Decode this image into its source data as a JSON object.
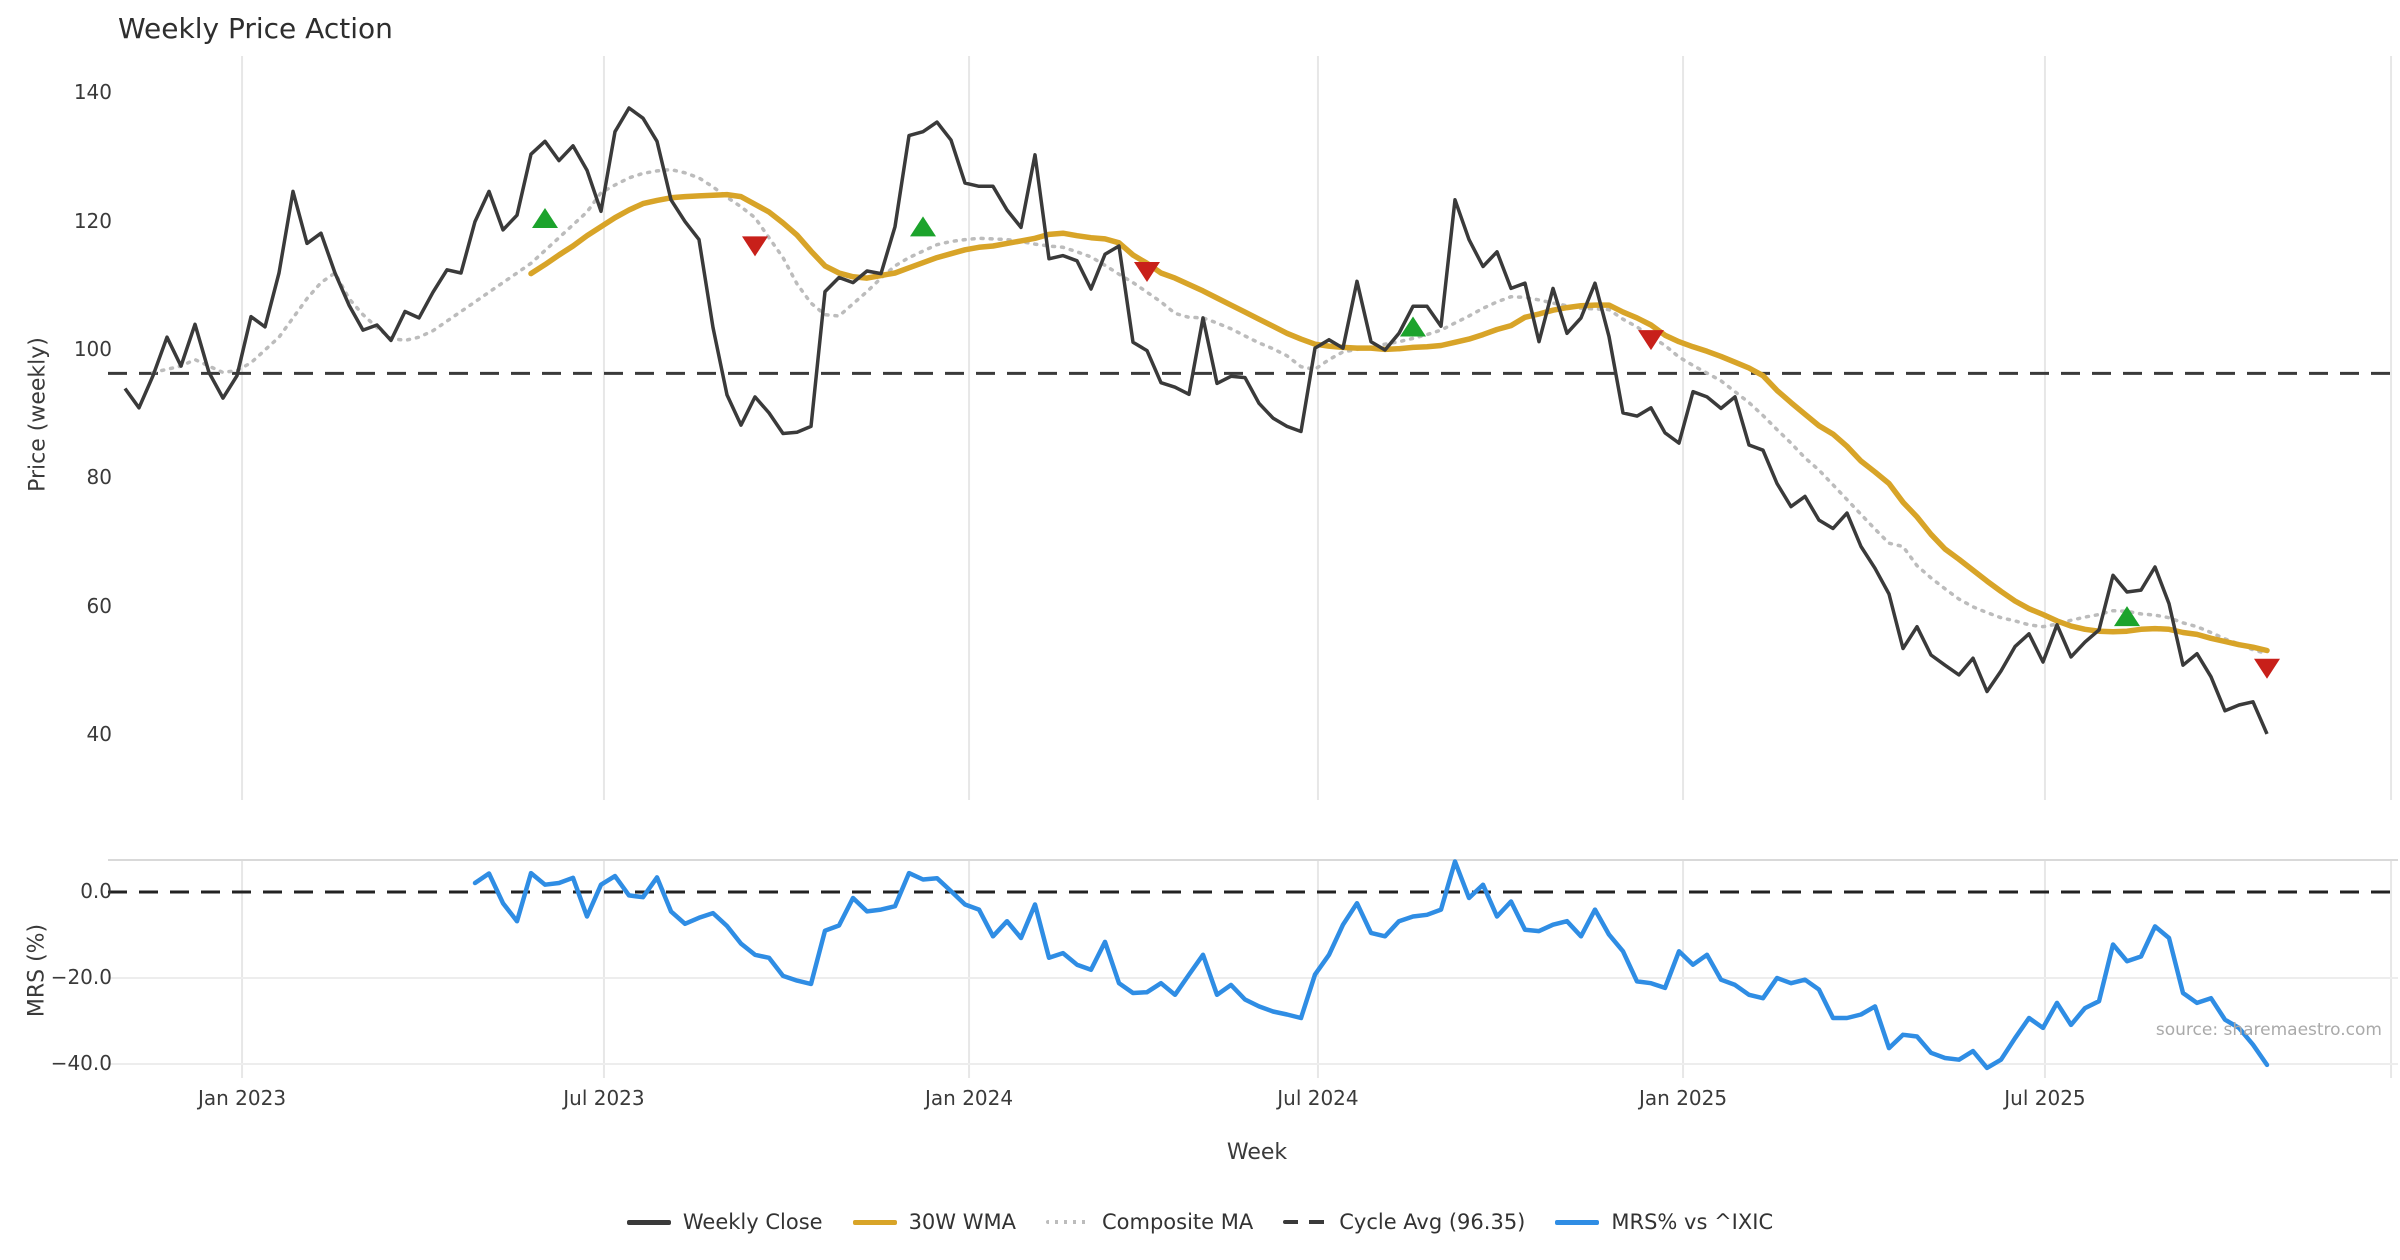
{
  "title": "Weekly Price Action",
  "watermark": "source: sharemaestro.com",
  "colors": {
    "close": "#3a3a3a",
    "wma": "#d8a428",
    "composite": "#bcbcbc",
    "cycle": "#3a3a3a",
    "mrs": "#2f8de4",
    "buy": "#1ca32c",
    "sell": "#c8201a",
    "grid": "#e7e7e7",
    "panel_border": "#d9d9d9"
  },
  "legend": [
    {
      "label": "Weekly Close",
      "swatch": "sw-close"
    },
    {
      "label": "30W WMA",
      "swatch": "sw-wma"
    },
    {
      "label": "Composite MA",
      "swatch": "sw-comp"
    },
    {
      "label": "Cycle Avg (96.35)",
      "swatch": "sw-cyc"
    },
    {
      "label": "MRS% vs ^IXIC",
      "swatch": "sw-mrs"
    }
  ],
  "chart_data": {
    "type": "line",
    "x_unit": "week",
    "ticks": [
      {
        "week": 8.36,
        "label": "Jan 2023"
      },
      {
        "week": 34.21,
        "label": "Jul 2023"
      },
      {
        "week": 60.29,
        "label": "Jan 2024"
      },
      {
        "week": 85.21,
        "label": "Jul 2024"
      },
      {
        "week": 111.29,
        "label": "Jan 2025"
      },
      {
        "week": 137.14,
        "label": "Jul 2025"
      }
    ],
    "extra_gridline_weeks": [
      161.86
    ],
    "price_panel": {
      "ylabel": "Price (weekly)",
      "yticks": [
        140,
        120,
        100,
        80,
        60,
        40
      ],
      "ylim_note": "y=350+(100-v)*6.42 px",
      "cycle_avg": 96.35,
      "series": [
        {
          "name": "Weekly Close",
          "start_week": 0,
          "values": [
            94,
            91,
            96,
            102,
            97.5,
            104,
            96.5,
            92.5,
            96,
            105.2,
            103.6,
            112,
            124.7,
            116.6,
            118.2,
            112,
            107,
            103.1,
            103.9,
            101.5,
            106,
            105,
            109,
            112.5,
            112,
            120,
            124.7,
            118.7,
            121,
            130.5,
            132.5,
            129.5,
            131.8,
            128,
            121.6,
            134,
            137.7,
            136.1,
            132.5,
            123.4,
            120,
            117.2,
            103.5,
            93,
            88.3,
            92.7,
            90.2,
            87,
            87.2,
            88.1,
            109.1,
            111.3,
            110.5,
            112.3,
            111.9,
            119.2,
            133.4,
            134,
            135.5,
            132.7,
            126,
            125.5,
            125.5,
            121.8,
            119.1,
            130.4,
            114.2,
            114.7,
            113.9,
            109.5,
            114.9,
            116.2,
            101.2,
            99.9,
            94.9,
            94.2,
            93.1,
            105,
            94.8,
            95.9,
            95.7,
            91.7,
            89.4,
            88.1,
            87.3,
            100.3,
            101.6,
            100.3,
            110.7,
            101.3,
            100,
            102.6,
            106.8,
            106.8,
            103.7,
            123.4,
            117.2,
            113,
            115.3,
            109.6,
            110.4,
            101.3,
            109.6,
            102.6,
            105,
            110.4,
            102.1,
            90.2,
            89.7,
            91,
            87.1,
            85.5,
            93.5,
            92.7,
            90.9,
            92.7,
            85.2,
            84.4,
            79.2,
            75.6,
            77.2,
            73.5,
            72.2,
            74.6,
            69.4,
            66,
            62,
            53.5,
            56.9,
            52.5,
            50.9,
            49.4,
            52,
            46.8,
            50,
            53.8,
            55.8,
            51.4,
            57.2,
            52.2,
            54.5,
            56.4,
            64.9,
            62.3,
            62.6,
            66.2,
            60.5,
            50.9,
            52.7,
            49.1,
            43.8,
            44.7,
            45.2,
            40.2
          ]
        },
        {
          "name": "30W WMA",
          "start_week": 29,
          "values": [
            111.9,
            113.3,
            114.8,
            116.2,
            117.8,
            119.2,
            120.6,
            121.8,
            122.8,
            123.3,
            123.7,
            123.9,
            124,
            124.1,
            124.2,
            123.9,
            122.7,
            121.5,
            119.8,
            117.9,
            115.4,
            113.1,
            112,
            111.4,
            111.2,
            111.6,
            112,
            112.8,
            113.6,
            114.4,
            115,
            115.6,
            116,
            116.2,
            116.6,
            117,
            117.4,
            118,
            118.2,
            117.8,
            117.5,
            117.3,
            116.7,
            114.8,
            113.5,
            112,
            111.2,
            110.2,
            109.2,
            108.1,
            107,
            105.9,
            104.8,
            103.7,
            102.6,
            101.7,
            100.9,
            100.6,
            100.4,
            100.3,
            100.3,
            100.1,
            100.2,
            100.4,
            100.5,
            100.7,
            101.2,
            101.7,
            102.4,
            103.2,
            103.8,
            105.1,
            105.6,
            106.2,
            106.6,
            106.9,
            107,
            107,
            105.9,
            105,
            103.9,
            102.3,
            101.3,
            100.5,
            99.8,
            99,
            98.1,
            97.2,
            96,
            93.7,
            91.8,
            90,
            88.2,
            86.9,
            85,
            82.7,
            81,
            79.2,
            76.3,
            74,
            71.3,
            69,
            67.4,
            65.7,
            64,
            62.4,
            60.9,
            59.7,
            58.8,
            57.8,
            57,
            56.5,
            56.2,
            56.1,
            56.2,
            56.5,
            56.6,
            56.5,
            56,
            55.7,
            55.1,
            54.6,
            54.1,
            53.7,
            53.2
          ]
        },
        {
          "name": "Composite MA",
          "start_week": 2,
          "values": [
            96.5,
            97,
            97.5,
            98.5,
            97.5,
            96.5,
            96.8,
            98,
            100,
            102,
            105,
            108,
            110.5,
            112,
            108,
            105.5,
            103.5,
            101.8,
            101.5,
            102,
            103,
            104.5,
            106,
            107.5,
            109,
            110.5,
            112,
            113.5,
            115.5,
            117.5,
            119.5,
            121.5,
            124.5,
            125.7,
            126.8,
            127.5,
            127.9,
            128.1,
            127.6,
            126.8,
            125.4,
            123.8,
            122.3,
            120.6,
            117.5,
            114.4,
            110.3,
            107.3,
            105.5,
            105.3,
            107.2,
            109.1,
            111.2,
            113.1,
            114.4,
            115.4,
            116.4,
            116.9,
            117.2,
            117.4,
            117.3,
            117.2,
            116.9,
            116.5,
            116.2,
            116,
            115.3,
            114.5,
            113.2,
            111.8,
            110.5,
            109,
            107.5,
            105.7,
            105.1,
            105,
            104.2,
            103.3,
            102.2,
            101.1,
            100.2,
            99.1,
            97.4,
            97,
            98.5,
            99.7,
            100.1,
            100.5,
            100.9,
            101.3,
            101.8,
            102.4,
            103.1,
            104.2,
            105.3,
            106.5,
            107.5,
            108.3,
            108.2,
            107.8,
            107.3,
            106.9,
            106.5,
            106.4,
            106.3,
            104.8,
            103.6,
            102.1,
            100.7,
            98.9,
            97.6,
            96.4,
            95.2,
            93.5,
            91.8,
            89.8,
            87.6,
            85.5,
            83.2,
            81.3,
            79,
            76.7,
            74.4,
            72.1,
            69.9,
            69.4,
            66.4,
            64.5,
            62.8,
            61.2,
            60,
            59.1,
            58.3,
            57.8,
            57.2,
            56.9,
            57.3,
            57.9,
            58.4,
            58.8,
            59.4,
            59.3,
            58.9,
            58.7,
            58.3,
            57.5,
            56.9,
            56,
            55,
            54.2,
            53.3,
            52.7
          ]
        }
      ],
      "signals": {
        "buy": [
          [
            30,
            120.4
          ],
          [
            57,
            119.1
          ],
          [
            92,
            103.5
          ],
          [
            143,
            58.4
          ]
        ],
        "sell": [
          [
            45,
            116.3
          ],
          [
            73,
            112.3
          ],
          [
            109,
            101.7
          ],
          [
            153,
            50.5
          ]
        ]
      }
    },
    "mrs_panel": {
      "ylabel": "MRS (%)",
      "xlabel": "Week",
      "yticks": [
        {
          "label": "0.0",
          "value": 0
        },
        {
          "label": "−20.0",
          "value": -20
        },
        {
          "label": "−40.0",
          "value": -40
        }
      ],
      "zero_line": 0,
      "series": [
        {
          "name": "MRS% vs ^IXIC",
          "start_week": 25,
          "values": [
            2.1,
            4.3,
            -2.6,
            -6.8,
            4.4,
            1.7,
            2.1,
            3.3,
            -5.7,
            1.7,
            3.7,
            -0.8,
            -1.2,
            3.4,
            -4.5,
            -7.4,
            -6,
            -4.9,
            -7.9,
            -12,
            -14.6,
            -15.3,
            -19.5,
            -20.6,
            -21.4,
            -9,
            -7.8,
            -1.4,
            -4.5,
            -4.1,
            -3.3,
            4.4,
            2.9,
            3.2,
            0.2,
            -2.9,
            -4.1,
            -10.3,
            -6.8,
            -10.7,
            -2.9,
            -15.3,
            -14.2,
            -16.9,
            -18.1,
            -11.6,
            -21.2,
            -23.5,
            -23.3,
            -21.2,
            -23.9,
            -19.2,
            -14.6,
            -23.9,
            -21.6,
            -25,
            -26.6,
            -27.8,
            -28.5,
            -29.3,
            -19.2,
            -14.6,
            -7.6,
            -2.6,
            -9.5,
            -10.3,
            -6.8,
            -5.7,
            -5.3,
            -4.1,
            7.1,
            -1.4,
            1.7,
            -5.7,
            -2.2,
            -8.8,
            -9.1,
            -7.6,
            -6.8,
            -10.3,
            -4.1,
            -9.9,
            -13.8,
            -20.8,
            -21.2,
            -22.3,
            -13.8,
            -16.9,
            -14.6,
            -20.4,
            -21.6,
            -23.9,
            -24.7,
            -20,
            -21.2,
            -20.4,
            -22.7,
            -29.3,
            -29.3,
            -28.5,
            -26.6,
            -36.3,
            -33.2,
            -33.6,
            -37.4,
            -38.6,
            -39,
            -37,
            -40.9,
            -39,
            -34,
            -29.3,
            -31.6,
            -25.8,
            -30.9,
            -27,
            -25.4,
            -12.2,
            -16.1,
            -15,
            -8,
            -10.7,
            -23.5,
            -25.8,
            -24.7,
            -29.7,
            -31.6,
            -35.5,
            -40.2
          ]
        }
      ]
    }
  }
}
